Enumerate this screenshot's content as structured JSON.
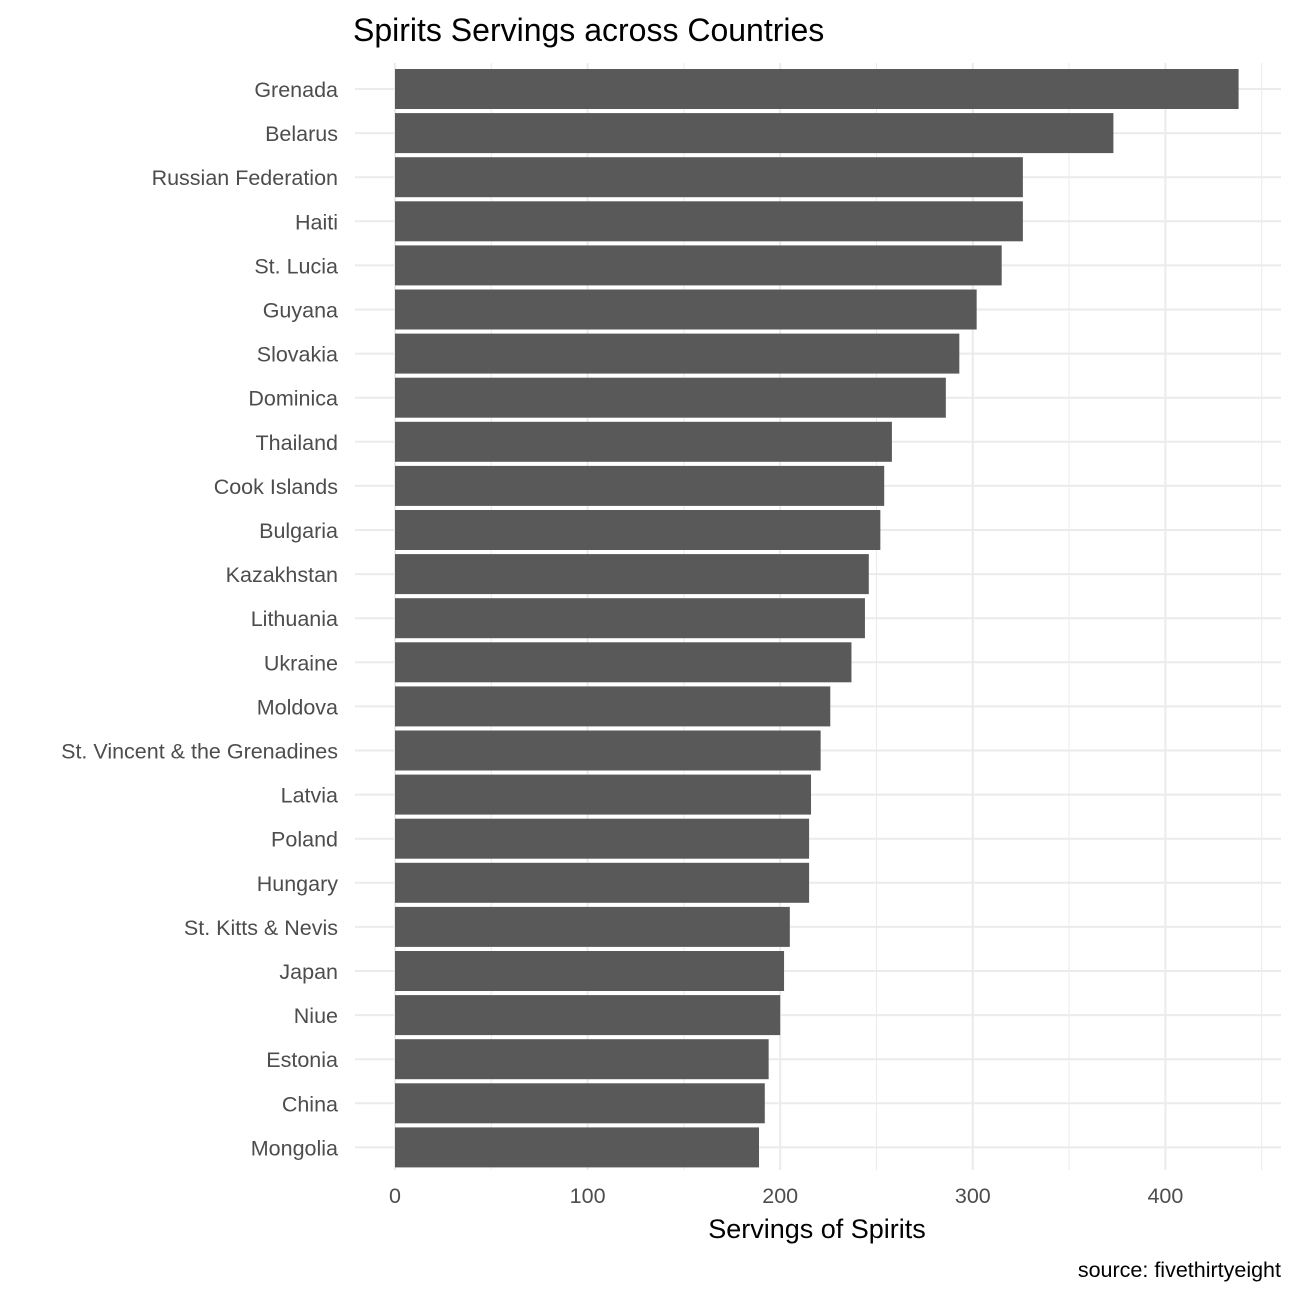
{
  "chart_data": {
    "type": "bar",
    "orientation": "horizontal",
    "title": "Spirits Servings across Countries",
    "xlabel": "Servings of Spirits",
    "ylabel": "",
    "caption": "source: fivethirtyeight",
    "categories": [
      "Grenada",
      "Belarus",
      "Russian Federation",
      "Haiti",
      "St. Lucia",
      "Guyana",
      "Slovakia",
      "Dominica",
      "Thailand",
      "Cook Islands",
      "Bulgaria",
      "Kazakhstan",
      "Lithuania",
      "Ukraine",
      "Moldova",
      "St. Vincent & the Grenadines",
      "Latvia",
      "Poland",
      "Hungary",
      "St. Kitts & Nevis",
      "Japan",
      "Niue",
      "Estonia",
      "China",
      "Mongolia"
    ],
    "values": [
      438,
      373,
      326,
      326,
      315,
      302,
      293,
      286,
      258,
      254,
      252,
      246,
      244,
      237,
      226,
      221,
      216,
      215,
      215,
      205,
      202,
      200,
      194,
      192,
      189
    ],
    "xlim": [
      0,
      460
    ],
    "xticks": [
      0,
      100,
      200,
      300,
      400
    ],
    "xtick_labels": [
      "0",
      "100",
      "200",
      "300",
      "400"
    ],
    "bar_color": "#595959",
    "grid_color": "#ebebeb",
    "grid": true,
    "legend": "none"
  }
}
